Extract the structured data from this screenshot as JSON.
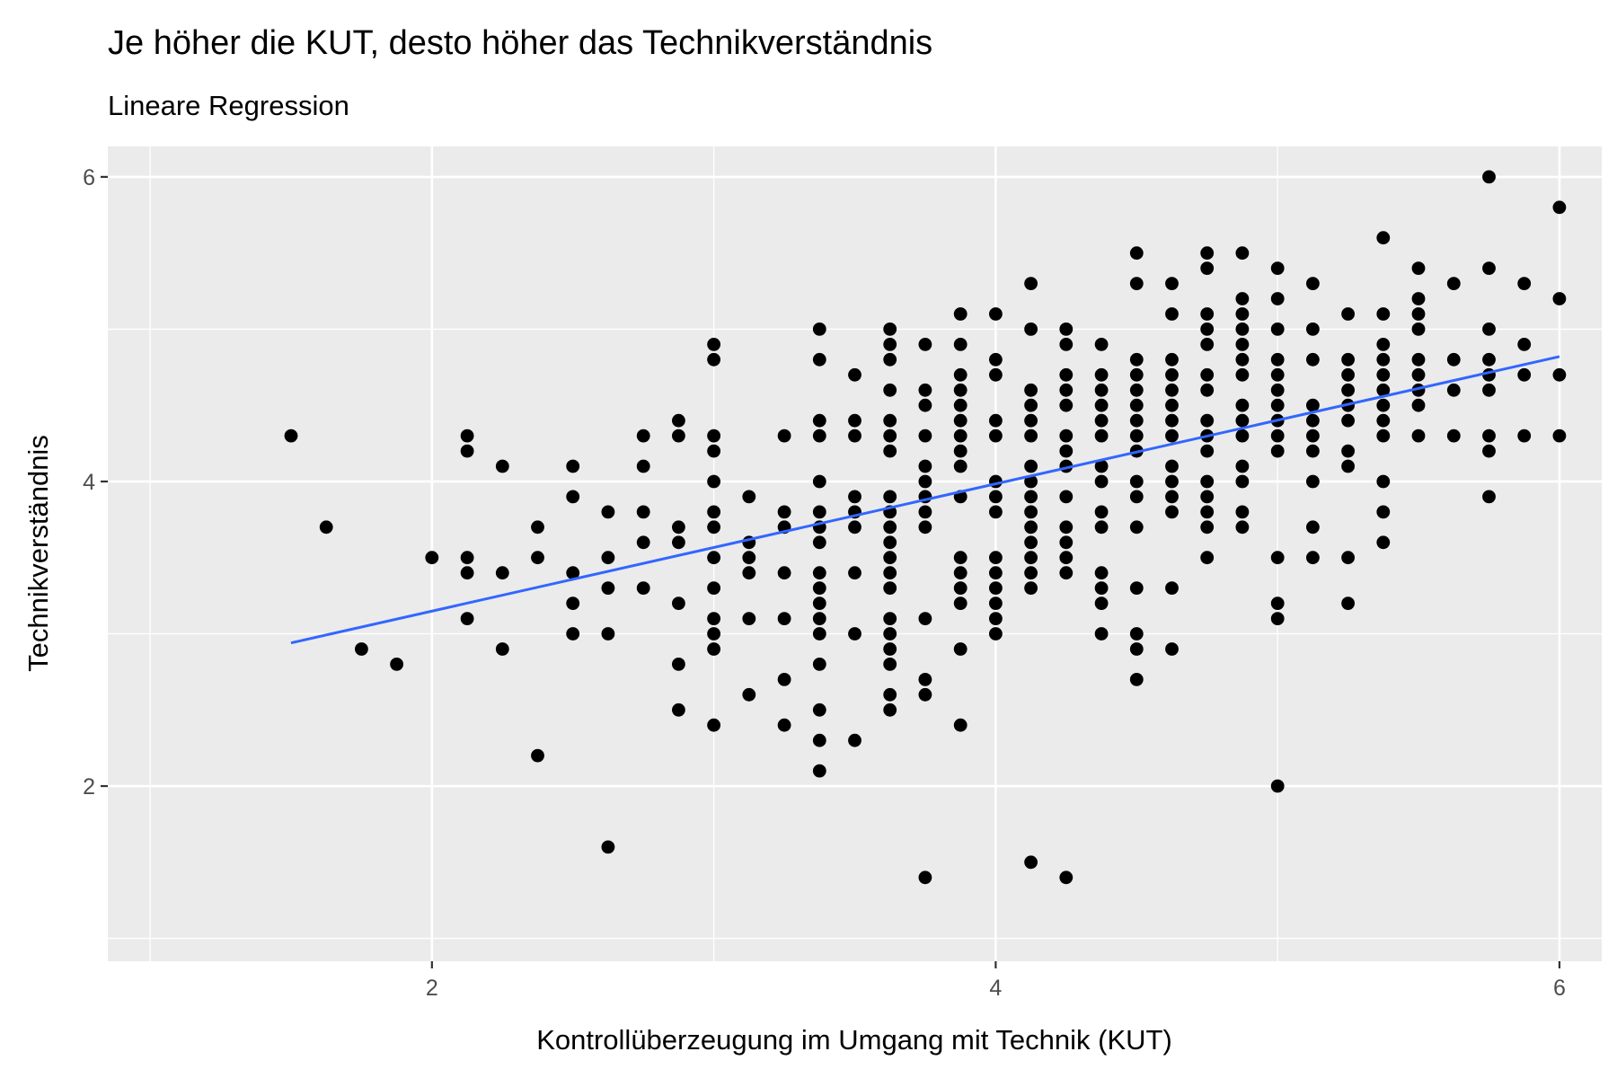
{
  "chart_data": {
    "type": "scatter",
    "title": "Je höher die KUT, desto höher das Technikverständnis",
    "subtitle": "Lineare Regression",
    "xlabel": "Kontrollüberzeugung im Umgang mit Technik (KUT)",
    "ylabel": "Technikverständnis",
    "xlim": [
      0.85,
      6.15
    ],
    "ylim": [
      0.85,
      6.2
    ],
    "x_ticks": [
      2,
      4,
      6
    ],
    "y_ticks": [
      2,
      4,
      6
    ],
    "x_tick_labels": [
      "2",
      "4",
      "6"
    ],
    "y_tick_labels": [
      "2",
      "4",
      "6"
    ],
    "grid": true,
    "colors": {
      "panel": "#ebebeb",
      "grid": "#ffffff",
      "points": "#000000",
      "fit_line": "#3366ff",
      "tick_text": "#4d4d4d"
    },
    "regression_line": {
      "x": [
        1.5,
        6.0
      ],
      "y": [
        2.94,
        4.82
      ]
    },
    "points": [
      [
        1.5,
        4.3
      ],
      [
        1.625,
        3.7
      ],
      [
        1.75,
        2.9
      ],
      [
        1.875,
        2.8
      ],
      [
        2.0,
        3.5
      ],
      [
        2.125,
        4.3
      ],
      [
        2.125,
        4.2
      ],
      [
        2.125,
        3.5
      ],
      [
        2.125,
        3.4
      ],
      [
        2.125,
        3.1
      ],
      [
        2.25,
        4.1
      ],
      [
        2.25,
        3.4
      ],
      [
        2.25,
        2.9
      ],
      [
        2.375,
        3.7
      ],
      [
        2.375,
        3.5
      ],
      [
        2.375,
        2.2
      ],
      [
        2.5,
        4.1
      ],
      [
        2.5,
        3.9
      ],
      [
        2.5,
        3.4
      ],
      [
        2.5,
        3.2
      ],
      [
        2.5,
        3.0
      ],
      [
        2.625,
        3.8
      ],
      [
        2.625,
        3.5
      ],
      [
        2.625,
        3.3
      ],
      [
        2.625,
        3.0
      ],
      [
        2.625,
        1.6
      ],
      [
        2.75,
        4.3
      ],
      [
        2.75,
        4.1
      ],
      [
        2.75,
        3.8
      ],
      [
        2.75,
        3.6
      ],
      [
        2.75,
        3.3
      ],
      [
        2.875,
        4.4
      ],
      [
        2.875,
        4.3
      ],
      [
        2.875,
        3.7
      ],
      [
        2.875,
        3.6
      ],
      [
        2.875,
        3.2
      ],
      [
        2.875,
        2.8
      ],
      [
        2.875,
        2.5
      ],
      [
        3.0,
        4.9
      ],
      [
        3.0,
        4.8
      ],
      [
        3.0,
        4.3
      ],
      [
        3.0,
        4.2
      ],
      [
        3.0,
        4.0
      ],
      [
        3.0,
        3.8
      ],
      [
        3.0,
        3.7
      ],
      [
        3.0,
        3.5
      ],
      [
        3.0,
        3.3
      ],
      [
        3.0,
        3.1
      ],
      [
        3.0,
        3.0
      ],
      [
        3.0,
        2.9
      ],
      [
        3.0,
        2.4
      ],
      [
        3.125,
        3.9
      ],
      [
        3.125,
        3.6
      ],
      [
        3.125,
        3.5
      ],
      [
        3.125,
        3.4
      ],
      [
        3.125,
        3.1
      ],
      [
        3.125,
        2.6
      ],
      [
        3.25,
        4.3
      ],
      [
        3.25,
        3.8
      ],
      [
        3.25,
        3.7
      ],
      [
        3.25,
        3.4
      ],
      [
        3.25,
        3.1
      ],
      [
        3.25,
        2.7
      ],
      [
        3.25,
        2.4
      ],
      [
        3.375,
        5.0
      ],
      [
        3.375,
        4.8
      ],
      [
        3.375,
        4.4
      ],
      [
        3.375,
        4.3
      ],
      [
        3.375,
        4.0
      ],
      [
        3.375,
        3.8
      ],
      [
        3.375,
        3.7
      ],
      [
        3.375,
        3.6
      ],
      [
        3.375,
        3.4
      ],
      [
        3.375,
        3.3
      ],
      [
        3.375,
        3.2
      ],
      [
        3.375,
        3.1
      ],
      [
        3.375,
        3.0
      ],
      [
        3.375,
        2.8
      ],
      [
        3.375,
        2.5
      ],
      [
        3.375,
        2.3
      ],
      [
        3.375,
        2.1
      ],
      [
        3.5,
        4.7
      ],
      [
        3.5,
        4.4
      ],
      [
        3.5,
        4.3
      ],
      [
        3.5,
        3.9
      ],
      [
        3.5,
        3.8
      ],
      [
        3.5,
        3.7
      ],
      [
        3.5,
        3.4
      ],
      [
        3.5,
        3.0
      ],
      [
        3.5,
        2.3
      ],
      [
        3.625,
        5.0
      ],
      [
        3.625,
        4.9
      ],
      [
        3.625,
        4.8
      ],
      [
        3.625,
        4.6
      ],
      [
        3.625,
        4.4
      ],
      [
        3.625,
        4.3
      ],
      [
        3.625,
        4.2
      ],
      [
        3.625,
        3.9
      ],
      [
        3.625,
        3.8
      ],
      [
        3.625,
        3.7
      ],
      [
        3.625,
        3.6
      ],
      [
        3.625,
        3.5
      ],
      [
        3.625,
        3.4
      ],
      [
        3.625,
        3.3
      ],
      [
        3.625,
        3.1
      ],
      [
        3.625,
        3.0
      ],
      [
        3.625,
        2.9
      ],
      [
        3.625,
        2.8
      ],
      [
        3.625,
        2.6
      ],
      [
        3.625,
        2.5
      ],
      [
        3.75,
        4.9
      ],
      [
        3.75,
        4.6
      ],
      [
        3.75,
        4.5
      ],
      [
        3.75,
        4.3
      ],
      [
        3.75,
        4.1
      ],
      [
        3.75,
        4.0
      ],
      [
        3.75,
        3.9
      ],
      [
        3.75,
        3.8
      ],
      [
        3.75,
        3.7
      ],
      [
        3.75,
        3.1
      ],
      [
        3.75,
        2.7
      ],
      [
        3.75,
        2.6
      ],
      [
        3.75,
        1.4
      ],
      [
        3.875,
        5.1
      ],
      [
        3.875,
        4.9
      ],
      [
        3.875,
        4.7
      ],
      [
        3.875,
        4.6
      ],
      [
        3.875,
        4.5
      ],
      [
        3.875,
        4.4
      ],
      [
        3.875,
        4.3
      ],
      [
        3.875,
        4.2
      ],
      [
        3.875,
        4.1
      ],
      [
        3.875,
        3.9
      ],
      [
        3.875,
        3.5
      ],
      [
        3.875,
        3.4
      ],
      [
        3.875,
        3.3
      ],
      [
        3.875,
        3.2
      ],
      [
        3.875,
        2.9
      ],
      [
        3.875,
        2.4
      ],
      [
        4.0,
        5.1
      ],
      [
        4.0,
        4.8
      ],
      [
        4.0,
        4.7
      ],
      [
        4.0,
        4.4
      ],
      [
        4.0,
        4.3
      ],
      [
        4.0,
        4.0
      ],
      [
        4.0,
        3.9
      ],
      [
        4.0,
        3.8
      ],
      [
        4.0,
        3.5
      ],
      [
        4.0,
        3.4
      ],
      [
        4.0,
        3.3
      ],
      [
        4.0,
        3.2
      ],
      [
        4.0,
        3.1
      ],
      [
        4.0,
        3.0
      ],
      [
        4.125,
        5.3
      ],
      [
        4.125,
        5.0
      ],
      [
        4.125,
        4.6
      ],
      [
        4.125,
        4.5
      ],
      [
        4.125,
        4.4
      ],
      [
        4.125,
        4.3
      ],
      [
        4.125,
        4.1
      ],
      [
        4.125,
        4.0
      ],
      [
        4.125,
        3.9
      ],
      [
        4.125,
        3.8
      ],
      [
        4.125,
        3.7
      ],
      [
        4.125,
        3.6
      ],
      [
        4.125,
        3.5
      ],
      [
        4.125,
        3.4
      ],
      [
        4.125,
        3.3
      ],
      [
        4.125,
        1.5
      ],
      [
        4.25,
        5.0
      ],
      [
        4.25,
        4.9
      ],
      [
        4.25,
        4.7
      ],
      [
        4.25,
        4.6
      ],
      [
        4.25,
        4.5
      ],
      [
        4.25,
        4.3
      ],
      [
        4.25,
        4.2
      ],
      [
        4.25,
        4.1
      ],
      [
        4.25,
        3.9
      ],
      [
        4.25,
        3.7
      ],
      [
        4.25,
        3.6
      ],
      [
        4.25,
        3.5
      ],
      [
        4.25,
        3.4
      ],
      [
        4.25,
        1.4
      ],
      [
        4.375,
        4.9
      ],
      [
        4.375,
        4.7
      ],
      [
        4.375,
        4.6
      ],
      [
        4.375,
        4.5
      ],
      [
        4.375,
        4.4
      ],
      [
        4.375,
        4.3
      ],
      [
        4.375,
        4.1
      ],
      [
        4.375,
        4.0
      ],
      [
        4.375,
        3.8
      ],
      [
        4.375,
        3.7
      ],
      [
        4.375,
        3.4
      ],
      [
        4.375,
        3.3
      ],
      [
        4.375,
        3.2
      ],
      [
        4.375,
        3.0
      ],
      [
        4.5,
        5.5
      ],
      [
        4.5,
        5.3
      ],
      [
        4.5,
        4.8
      ],
      [
        4.5,
        4.7
      ],
      [
        4.5,
        4.6
      ],
      [
        4.5,
        4.5
      ],
      [
        4.5,
        4.4
      ],
      [
        4.5,
        4.3
      ],
      [
        4.5,
        4.2
      ],
      [
        4.5,
        4.0
      ],
      [
        4.5,
        3.9
      ],
      [
        4.5,
        3.7
      ],
      [
        4.5,
        3.3
      ],
      [
        4.5,
        3.0
      ],
      [
        4.5,
        2.9
      ],
      [
        4.5,
        2.7
      ],
      [
        4.625,
        5.3
      ],
      [
        4.625,
        5.1
      ],
      [
        4.625,
        4.8
      ],
      [
        4.625,
        4.7
      ],
      [
        4.625,
        4.6
      ],
      [
        4.625,
        4.5
      ],
      [
        4.625,
        4.4
      ],
      [
        4.625,
        4.3
      ],
      [
        4.625,
        4.1
      ],
      [
        4.625,
        4.0
      ],
      [
        4.625,
        3.9
      ],
      [
        4.625,
        3.8
      ],
      [
        4.625,
        3.3
      ],
      [
        4.625,
        2.9
      ],
      [
        4.75,
        5.5
      ],
      [
        4.75,
        5.4
      ],
      [
        4.75,
        5.1
      ],
      [
        4.75,
        5.0
      ],
      [
        4.75,
        4.9
      ],
      [
        4.75,
        4.7
      ],
      [
        4.75,
        4.6
      ],
      [
        4.75,
        4.4
      ],
      [
        4.75,
        4.3
      ],
      [
        4.75,
        4.2
      ],
      [
        4.75,
        4.0
      ],
      [
        4.75,
        3.9
      ],
      [
        4.75,
        3.8
      ],
      [
        4.75,
        3.7
      ],
      [
        4.75,
        3.5
      ],
      [
        4.875,
        5.5
      ],
      [
        4.875,
        5.2
      ],
      [
        4.875,
        5.1
      ],
      [
        4.875,
        5.0
      ],
      [
        4.875,
        4.9
      ],
      [
        4.875,
        4.8
      ],
      [
        4.875,
        4.7
      ],
      [
        4.875,
        4.5
      ],
      [
        4.875,
        4.4
      ],
      [
        4.875,
        4.3
      ],
      [
        4.875,
        4.1
      ],
      [
        4.875,
        4.0
      ],
      [
        4.875,
        3.8
      ],
      [
        4.875,
        3.7
      ],
      [
        5.0,
        5.4
      ],
      [
        5.0,
        5.2
      ],
      [
        5.0,
        5.0
      ],
      [
        5.0,
        4.8
      ],
      [
        5.0,
        4.7
      ],
      [
        5.0,
        4.6
      ],
      [
        5.0,
        4.5
      ],
      [
        5.0,
        4.4
      ],
      [
        5.0,
        4.3
      ],
      [
        5.0,
        4.2
      ],
      [
        5.0,
        3.5
      ],
      [
        5.0,
        3.2
      ],
      [
        5.0,
        3.1
      ],
      [
        5.0,
        2.0
      ],
      [
        5.125,
        5.3
      ],
      [
        5.125,
        5.0
      ],
      [
        5.125,
        4.8
      ],
      [
        5.125,
        4.5
      ],
      [
        5.125,
        4.4
      ],
      [
        5.125,
        4.3
      ],
      [
        5.125,
        4.2
      ],
      [
        5.125,
        4.0
      ],
      [
        5.125,
        3.7
      ],
      [
        5.125,
        3.5
      ],
      [
        5.25,
        5.1
      ],
      [
        5.25,
        4.8
      ],
      [
        5.25,
        4.7
      ],
      [
        5.25,
        4.6
      ],
      [
        5.25,
        4.5
      ],
      [
        5.25,
        4.4
      ],
      [
        5.25,
        4.2
      ],
      [
        5.25,
        4.1
      ],
      [
        5.25,
        3.5
      ],
      [
        5.25,
        3.2
      ],
      [
        5.375,
        5.6
      ],
      [
        5.375,
        5.1
      ],
      [
        5.375,
        4.9
      ],
      [
        5.375,
        4.8
      ],
      [
        5.375,
        4.7
      ],
      [
        5.375,
        4.6
      ],
      [
        5.375,
        4.5
      ],
      [
        5.375,
        4.4
      ],
      [
        5.375,
        4.3
      ],
      [
        5.375,
        4.0
      ],
      [
        5.375,
        3.8
      ],
      [
        5.375,
        3.6
      ],
      [
        5.5,
        5.4
      ],
      [
        5.5,
        5.2
      ],
      [
        5.5,
        5.1
      ],
      [
        5.5,
        5.0
      ],
      [
        5.5,
        4.8
      ],
      [
        5.5,
        4.7
      ],
      [
        5.5,
        4.6
      ],
      [
        5.5,
        4.5
      ],
      [
        5.5,
        4.3
      ],
      [
        5.625,
        5.3
      ],
      [
        5.625,
        4.8
      ],
      [
        5.625,
        4.6
      ],
      [
        5.625,
        4.3
      ],
      [
        5.75,
        6.0
      ],
      [
        5.75,
        5.4
      ],
      [
        5.75,
        5.0
      ],
      [
        5.75,
        4.8
      ],
      [
        5.75,
        4.7
      ],
      [
        5.75,
        4.6
      ],
      [
        5.75,
        4.3
      ],
      [
        5.75,
        4.2
      ],
      [
        5.75,
        3.9
      ],
      [
        5.875,
        5.3
      ],
      [
        5.875,
        4.9
      ],
      [
        5.875,
        4.7
      ],
      [
        5.875,
        4.3
      ],
      [
        6.0,
        5.8
      ],
      [
        6.0,
        5.2
      ],
      [
        6.0,
        4.7
      ],
      [
        6.0,
        4.3
      ]
    ]
  }
}
